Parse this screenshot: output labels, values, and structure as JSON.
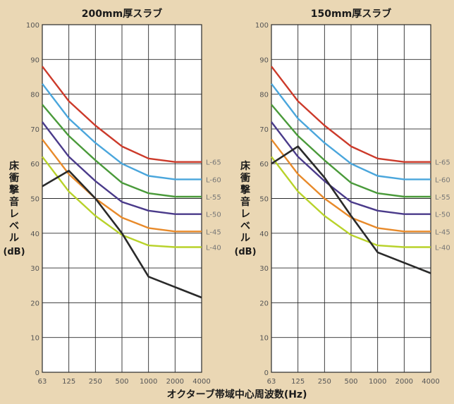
{
  "figure": {
    "xlabel": "オクターブ帯域中心周波数(Hz)",
    "ylabel_chars": [
      "床",
      "衝",
      "撃",
      "音",
      "レ",
      "ベ",
      "ル"
    ],
    "ylabel_unit": "(dB)"
  },
  "chart_data": [
    {
      "type": "line",
      "title": "200mm厚スラブ",
      "x": [
        "63",
        "125",
        "250",
        "500",
        "1000",
        "2000",
        "4000"
      ],
      "yticks": [
        0,
        10,
        20,
        30,
        40,
        50,
        60,
        70,
        80,
        90,
        100
      ],
      "ylim": [
        0,
        100
      ],
      "grid": true,
      "series": [
        {
          "name": "L-65",
          "color": "#cc3a2a",
          "values": [
            88,
            78,
            71,
            65,
            61.5,
            60.5,
            60.5
          ]
        },
        {
          "name": "L-60",
          "color": "#4aa6dc",
          "values": [
            83,
            73,
            66,
            60,
            56.5,
            55.5,
            55.5
          ]
        },
        {
          "name": "L-55",
          "color": "#4a9a3a",
          "values": [
            77,
            68,
            61,
            54.5,
            51.5,
            50.5,
            50.5
          ]
        },
        {
          "name": "L-50",
          "color": "#4a3a8a",
          "values": [
            72,
            62,
            55,
            49,
            46.5,
            45.5,
            45.5
          ]
        },
        {
          "name": "L-45",
          "color": "#e88a2a",
          "values": [
            67,
            57,
            50,
            44.5,
            41.5,
            40.5,
            40.5
          ]
        },
        {
          "name": "L-40",
          "color": "#b8d22a",
          "values": [
            62,
            52,
            45,
            39.5,
            36.5,
            36,
            36
          ]
        },
        {
          "name": "",
          "color": "#2a2a2a",
          "values": [
            53.5,
            58,
            50,
            40,
            27.5,
            24.5,
            21.5
          ]
        }
      ]
    },
    {
      "type": "line",
      "title": "150mm厚スラブ",
      "x": [
        "63",
        "125",
        "250",
        "500",
        "1000",
        "2000",
        "4000"
      ],
      "yticks": [
        0,
        10,
        20,
        30,
        40,
        50,
        60,
        70,
        80,
        90,
        100
      ],
      "ylim": [
        0,
        100
      ],
      "grid": true,
      "series": [
        {
          "name": "L-65",
          "color": "#cc3a2a",
          "values": [
            88,
            78,
            71,
            65,
            61.5,
            60.5,
            60.5
          ]
        },
        {
          "name": "L-60",
          "color": "#4aa6dc",
          "values": [
            83,
            73,
            66,
            60,
            56.5,
            55.5,
            55.5
          ]
        },
        {
          "name": "L-55",
          "color": "#4a9a3a",
          "values": [
            77,
            68,
            61,
            54.5,
            51.5,
            50.5,
            50.5
          ]
        },
        {
          "name": "L-50",
          "color": "#4a3a8a",
          "values": [
            72,
            62,
            55,
            49,
            46.5,
            45.5,
            45.5
          ]
        },
        {
          "name": "L-45",
          "color": "#e88a2a",
          "values": [
            67,
            57,
            50,
            44.5,
            41.5,
            40.5,
            40.5
          ]
        },
        {
          "name": "L-40",
          "color": "#b8d22a",
          "values": [
            62,
            52,
            45,
            39.5,
            36.5,
            36,
            36
          ]
        },
        {
          "name": "",
          "color": "#2a2a2a",
          "values": [
            60,
            65,
            56,
            45,
            34.5,
            31.5,
            28.5
          ]
        }
      ]
    }
  ]
}
